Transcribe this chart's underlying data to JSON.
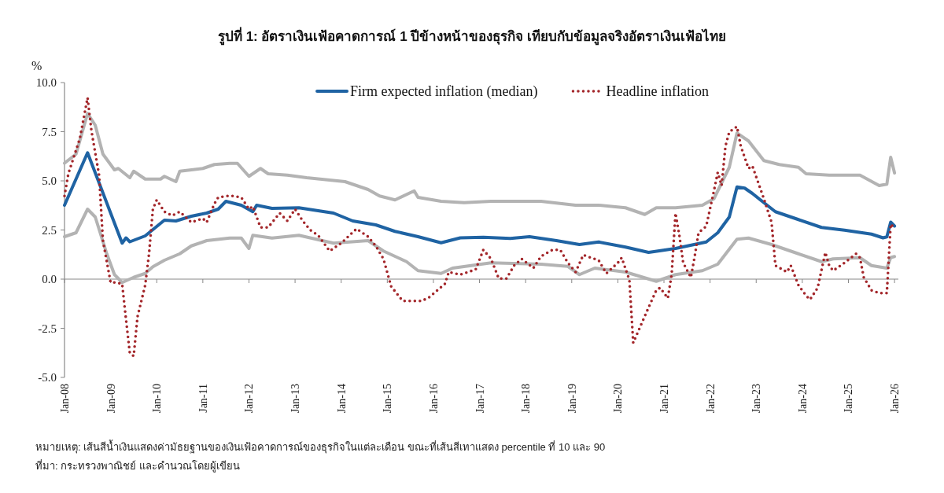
{
  "chart_data": {
    "type": "line",
    "title": "รูปที่ 1: อัตราเงินเฟ้อคาดการณ์ 1 ปีข้างหน้าของธุรกิจ เทียบกับข้อมูลจริงอัตราเงินเฟ้อไทย",
    "ylabel": "%",
    "xlim": [
      "2008-01",
      "2026-02"
    ],
    "xticks": [
      {
        "value": "2008-01",
        "label": "Jan-08"
      },
      {
        "value": "2009-01",
        "label": "Jan-09"
      },
      {
        "value": "2010-01",
        "label": "Jan-10"
      },
      {
        "value": "2011-01",
        "label": "Jan-11"
      },
      {
        "value": "2012-01",
        "label": "Jan-12"
      },
      {
        "value": "2013-01",
        "label": "Jan-13"
      },
      {
        "value": "2014-01",
        "label": "Jan-14"
      },
      {
        "value": "2015-01",
        "label": "Jan-15"
      },
      {
        "value": "2016-01",
        "label": "Jan-16"
      },
      {
        "value": "2017-01",
        "label": "Jan-17"
      },
      {
        "value": "2018-01",
        "label": "Jan-18"
      },
      {
        "value": "2019-01",
        "label": "Jan-19"
      },
      {
        "value": "2020-01",
        "label": "Jan-20"
      },
      {
        "value": "2021-01",
        "label": "Jan-21"
      },
      {
        "value": "2022-01",
        "label": "Jan-22"
      },
      {
        "value": "2023-01",
        "label": "Jan-23"
      },
      {
        "value": "2024-01",
        "label": "Jan-24"
      },
      {
        "value": "2025-01",
        "label": "Jan-25"
      },
      {
        "value": "2026-01",
        "label": "Jan-26"
      }
    ],
    "ylim": [
      -5,
      10
    ],
    "yticks": [
      {
        "value": -5,
        "label": "-5.0"
      },
      {
        "value": -2.5,
        "label": "-2.5"
      },
      {
        "value": 0,
        "label": "0.0"
      },
      {
        "value": 2.5,
        "label": "2.5"
      },
      {
        "value": 5,
        "label": "5.0"
      },
      {
        "value": 7.5,
        "label": "7.5"
      },
      {
        "value": 10,
        "label": "10.0"
      }
    ],
    "legend": "top",
    "line_style": "solid",
    "series": [
      {
        "color": "#b3b3b3",
        "x": [
          "2008-01",
          "2008-04",
          "2008-07",
          "2008-09",
          "2008-11",
          "2009-02",
          "2009-03",
          "2009-06",
          "2009-07",
          "2009-10",
          "2010-02",
          "2010-03",
          "2010-06",
          "2010-07",
          "2011-01",
          "2011-04",
          "2011-08",
          "2011-10",
          "2012-01",
          "2012-04",
          "2012-06",
          "2012-11",
          "2013-04",
          "2014-02",
          "2014-08",
          "2014-11",
          "2015-03",
          "2015-08",
          "2015-09",
          "2016-03",
          "2016-09",
          "2017-04",
          "2018-05",
          "2019-02",
          "2019-08",
          "2020-03",
          "2020-08",
          "2020-11",
          "2021-04",
          "2021-11",
          "2022-02",
          "2022-06",
          "2022-08",
          "2022-11",
          "2023-03",
          "2023-07",
          "2023-12",
          "2024-02",
          "2024-08",
          "2025-04",
          "2025-09",
          "2025-11",
          "2025-12",
          "2026-01"
        ],
        "values": [
          5.9,
          6.36,
          8.43,
          7.83,
          6.36,
          5.56,
          5.63,
          5.16,
          5.49,
          5.09,
          5.09,
          5.23,
          4.96,
          5.49,
          5.63,
          5.83,
          5.89,
          5.89,
          5.23,
          5.63,
          5.36,
          5.29,
          5.16,
          4.96,
          4.56,
          4.23,
          4.03,
          4.49,
          4.16,
          3.96,
          3.89,
          3.96,
          3.96,
          3.76,
          3.76,
          3.63,
          3.29,
          3.63,
          3.63,
          3.76,
          4.09,
          5.69,
          7.43,
          7.03,
          6.03,
          5.83,
          5.69,
          5.36,
          5.29,
          5.29,
          4.76,
          4.83,
          6.2,
          5.4
        ]
      },
      {
        "color": "#b3b3b3",
        "x": [
          "2008-01",
          "2008-04",
          "2008-07",
          "2008-09",
          "2008-12",
          "2009-02",
          "2009-04",
          "2009-07",
          "2009-10",
          "2009-12",
          "2010-03",
          "2010-07",
          "2010-10",
          "2011-02",
          "2011-08",
          "2011-11",
          "2012-01",
          "2012-02",
          "2012-07",
          "2013-02",
          "2013-11",
          "2014-08",
          "2014-12",
          "2015-06",
          "2015-09",
          "2016-03",
          "2016-06",
          "2017-04",
          "2018-05",
          "2018-12",
          "2019-03",
          "2019-07",
          "2020-03",
          "2020-11",
          "2021-04",
          "2021-11",
          "2022-03",
          "2022-08",
          "2022-11",
          "2023-05",
          "2023-12",
          "2024-06",
          "2024-09",
          "2025-04",
          "2025-07",
          "2025-11",
          "2025-12",
          "2026-01"
        ],
        "values": [
          2.16,
          2.36,
          3.56,
          3.16,
          1.29,
          0.23,
          -0.17,
          0.09,
          0.29,
          0.63,
          0.96,
          1.29,
          1.69,
          1.96,
          2.09,
          2.09,
          1.56,
          2.23,
          2.09,
          2.23,
          1.83,
          1.96,
          1.43,
          0.89,
          0.43,
          0.29,
          0.56,
          0.83,
          0.76,
          0.65,
          0.23,
          0.56,
          0.36,
          -0.11,
          0.23,
          0.43,
          0.76,
          2.03,
          2.09,
          1.76,
          1.29,
          0.89,
          1.03,
          1.09,
          0.69,
          0.56,
          1.1,
          1.15
        ]
      },
      {
        "name": "Firm expected inflation (median)",
        "color": "#1f63a3",
        "x": [
          "2008-01",
          "2008-07",
          "2009-04",
          "2009-05",
          "2009-06",
          "2009-10",
          "2010-03",
          "2010-06",
          "2010-10",
          "2011-02",
          "2011-05",
          "2011-07",
          "2011-11",
          "2012-02",
          "2012-03",
          "2012-07",
          "2013-02",
          "2013-11",
          "2014-04",
          "2014-10",
          "2015-03",
          "2015-09",
          "2016-03",
          "2016-08",
          "2017-02",
          "2017-09",
          "2018-02",
          "2018-09",
          "2019-03",
          "2019-08",
          "2020-03",
          "2020-09",
          "2021-04",
          "2021-12",
          "2022-03",
          "2022-06",
          "2022-08",
          "2022-10",
          "2022-12",
          "2023-03",
          "2023-06",
          "2023-12",
          "2024-06",
          "2024-12",
          "2025-07",
          "2025-10",
          "2025-11",
          "2025-12",
          "2026-01"
        ],
        "values": [
          3.76,
          6.43,
          1.83,
          2.1,
          1.9,
          2.2,
          3.0,
          2.96,
          3.2,
          3.36,
          3.56,
          3.96,
          3.76,
          3.43,
          3.76,
          3.6,
          3.63,
          3.36,
          2.96,
          2.76,
          2.43,
          2.16,
          1.85,
          2.1,
          2.13,
          2.07,
          2.16,
          1.96,
          1.76,
          1.89,
          1.63,
          1.36,
          1.56,
          1.89,
          2.36,
          3.16,
          4.69,
          4.63,
          4.36,
          3.89,
          3.43,
          3.03,
          2.63,
          2.49,
          2.29,
          2.1,
          2.15,
          2.9,
          2.7
        ]
      },
      {
        "name": "Headline inflation",
        "color": "#a3262a",
        "line_style": "dotted",
        "x": [
          "2008-01",
          "2008-02",
          "2008-05",
          "2008-07",
          "2008-08",
          "2008-10",
          "2008-11",
          "2009-01",
          "2009-02",
          "2009-04",
          "2009-05",
          "2009-06",
          "2009-07",
          "2009-08",
          "2009-10",
          "2009-11",
          "2009-12",
          "2010-01",
          "2010-03",
          "2010-05",
          "2010-07",
          "2010-10",
          "2011-01",
          "2011-02",
          "2011-04",
          "2011-05",
          "2011-08",
          "2011-11",
          "2012-01",
          "2012-02",
          "2012-04",
          "2012-06",
          "2012-09",
          "2012-11",
          "2013-01",
          "2013-03",
          "2013-05",
          "2013-07",
          "2013-08",
          "2013-10",
          "2014-01",
          "2014-05",
          "2014-08",
          "2014-10",
          "2014-12",
          "2015-02",
          "2015-05",
          "2015-10",
          "2015-12",
          "2016-04",
          "2016-05",
          "2016-08",
          "2016-12",
          "2017-02",
          "2017-04",
          "2017-06",
          "2017-08",
          "2017-10",
          "2017-12",
          "2018-03",
          "2018-05",
          "2018-08",
          "2018-10",
          "2018-12",
          "2019-02",
          "2019-04",
          "2019-06",
          "2019-08",
          "2019-10",
          "2020-01",
          "2020-02",
          "2020-04",
          "2020-05",
          "2020-09",
          "2020-11",
          "2020-12",
          "2021-02",
          "2021-03",
          "2021-04",
          "2021-05",
          "2021-06",
          "2021-08",
          "2021-09",
          "2021-10",
          "2021-12",
          "2022-02",
          "2022-03",
          "2022-04",
          "2022-05",
          "2022-06",
          "2022-08",
          "2022-09",
          "2022-11",
          "2022-12",
          "2023-03",
          "2023-05",
          "2023-06",
          "2023-09",
          "2023-10",
          "2023-12",
          "2024-02",
          "2024-03",
          "2024-05",
          "2024-07",
          "2024-08",
          "2024-09",
          "2024-12",
          "2025-03",
          "2025-04",
          "2025-05",
          "2025-07",
          "2025-09",
          "2025-11",
          "2025-12",
          "2026-01"
        ],
        "values": [
          4.23,
          5.36,
          7.16,
          9.23,
          7.56,
          5.29,
          1.96,
          -0.17,
          -0.17,
          -0.24,
          -2.04,
          -3.77,
          -3.91,
          -1.91,
          -0.31,
          1.29,
          3.56,
          4.03,
          3.43,
          3.23,
          3.43,
          2.89,
          3.09,
          2.89,
          3.83,
          4.16,
          4.25,
          4.16,
          3.56,
          3.7,
          2.63,
          2.63,
          3.36,
          2.96,
          3.56,
          2.96,
          2.49,
          2.23,
          1.96,
          1.43,
          1.83,
          2.56,
          2.16,
          1.69,
          1.03,
          -0.37,
          -1.11,
          -1.11,
          -0.91,
          -0.24,
          0.36,
          0.23,
          0.49,
          1.49,
          1.03,
          0.03,
          0.03,
          0.69,
          1.03,
          0.56,
          1.16,
          1.49,
          1.49,
          0.83,
          0.36,
          1.23,
          1.09,
          0.96,
          0.29,
          0.83,
          1.09,
          -0.04,
          -3.24,
          -1.44,
          -0.57,
          -0.44,
          -0.97,
          0.23,
          3.36,
          2.23,
          0.83,
          0.09,
          1.16,
          2.36,
          2.69,
          4.49,
          5.43,
          4.76,
          6.76,
          7.49,
          7.76,
          6.76,
          5.63,
          5.76,
          4.09,
          2.89,
          0.69,
          0.36,
          0.69,
          -0.31,
          -0.84,
          -1.04,
          -0.44,
          1.36,
          0.69,
          0.43,
          0.83,
          1.29,
          1.09,
          0.09,
          -0.57,
          -0.71,
          -0.71,
          2.8,
          2.6
        ]
      }
    ],
    "annotations": [
      "หมายเหตุ: เส้นสีน้ำเงินแสดงค่ามัธยฐานของเงินเฟ้อคาดการณ์ของธุรกิจในแต่ละเดือน ขณะที่เส้นสีเทาแสดง percentile ที่ 10 และ 90",
      "ที่มา: กระทรวงพาณิชย์ และคำนวณโดยผู้เขียน"
    ]
  }
}
